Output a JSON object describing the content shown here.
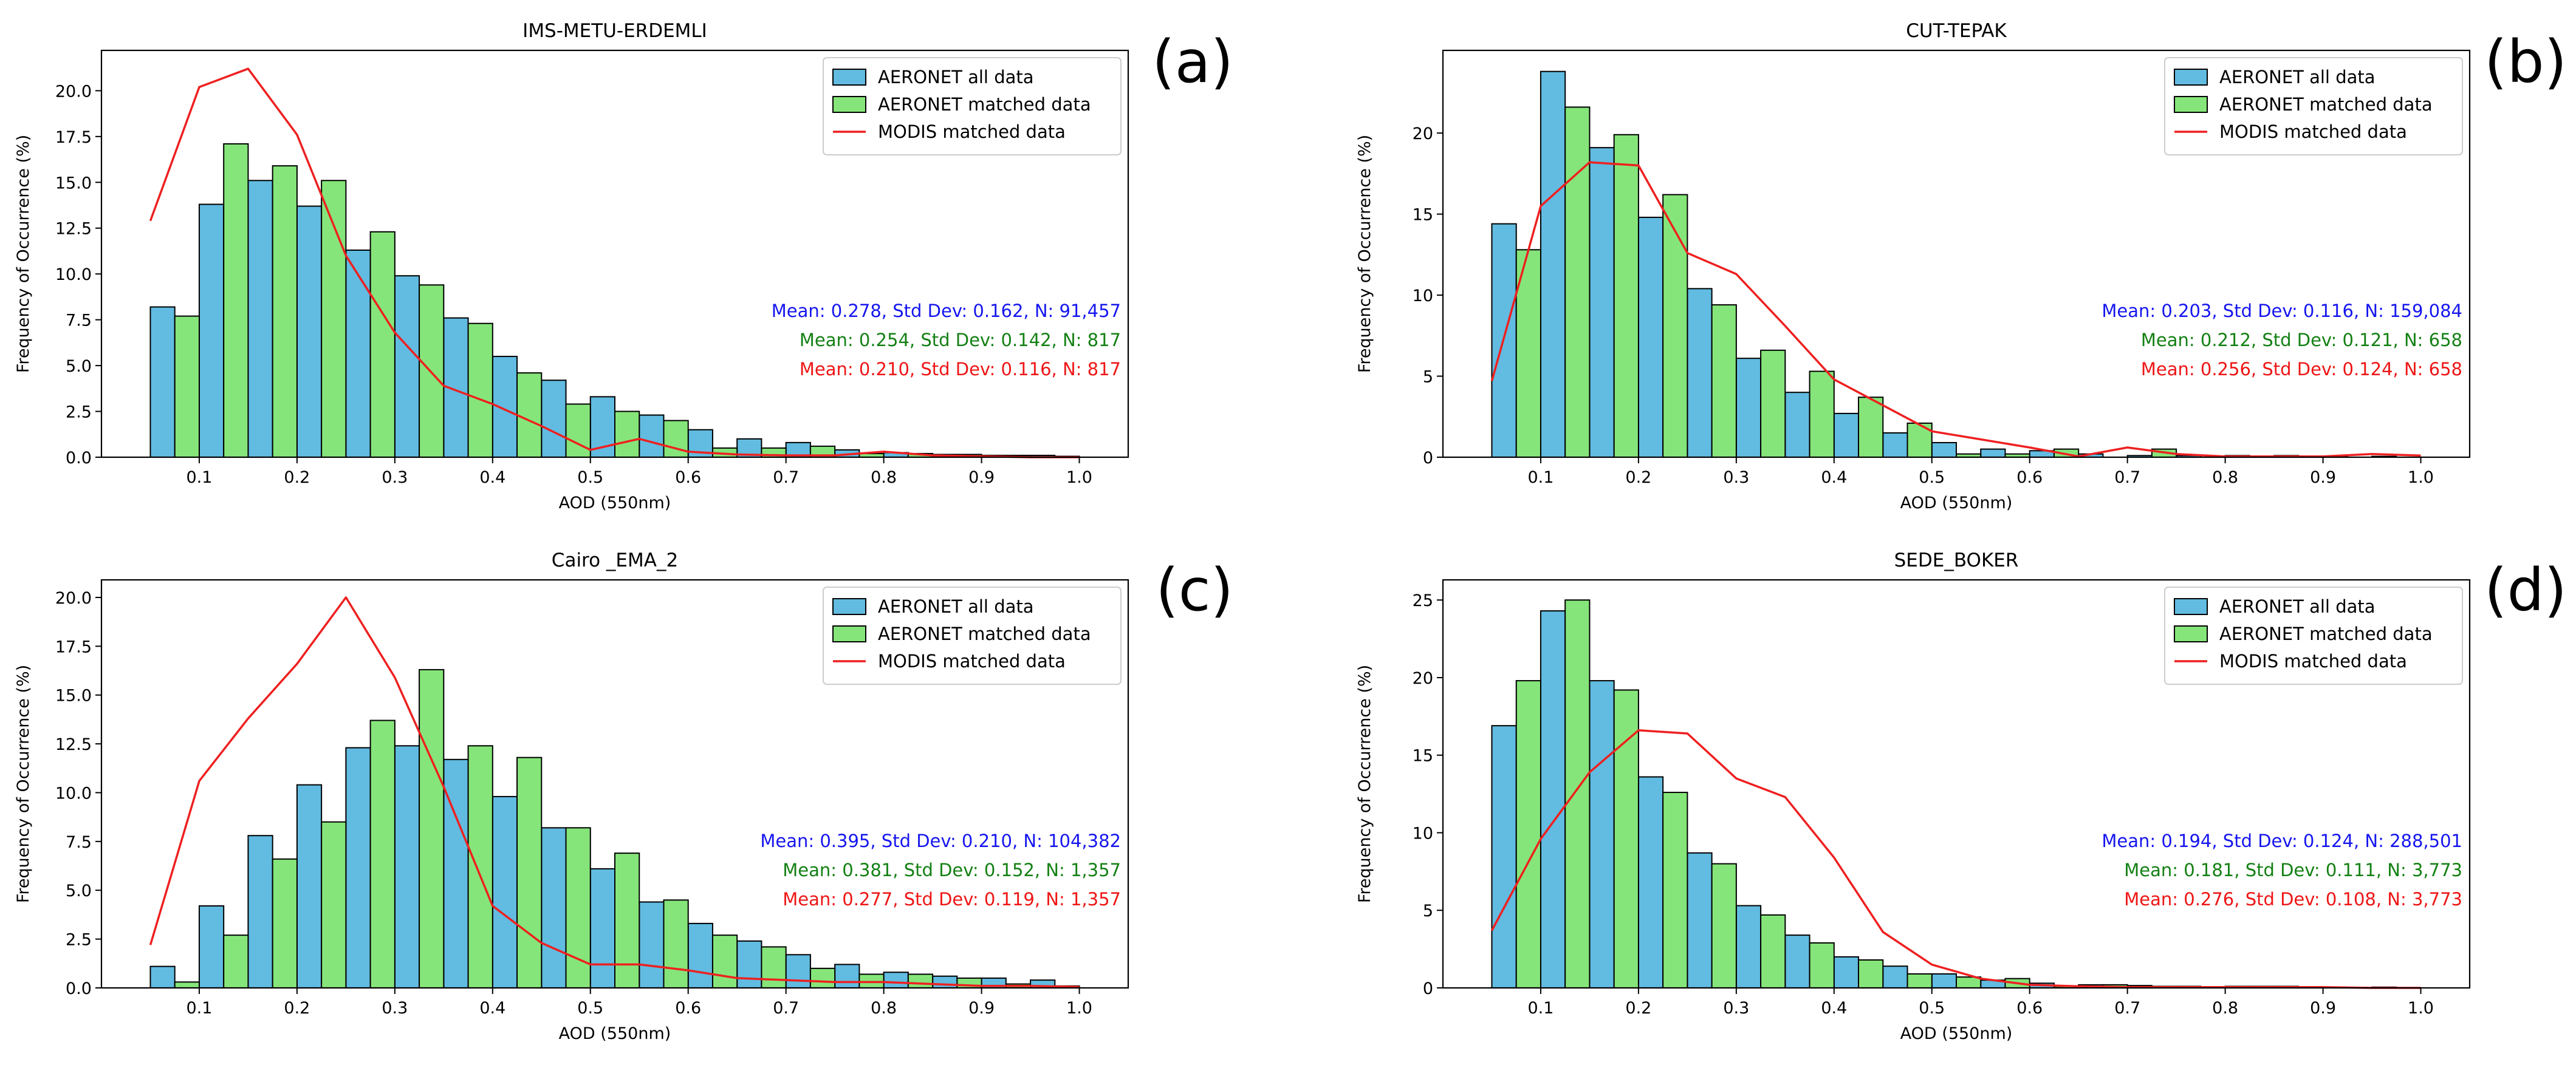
{
  "colors": {
    "all": "#62bbe0",
    "matched": "#86e57a",
    "modis": "#ee2020",
    "stat_all": "#1515f0",
    "stat_matched": "#138013",
    "stat_modis": "#ee1515"
  },
  "chart_data": [
    {
      "type": "bar",
      "panel_label": "(a)",
      "title": "IMS-METU-ERDEMLI",
      "xlabel": "AOD (550nm)",
      "ylabel": "Frequency of Occurrence (%)",
      "xlim": [
        0.0,
        1.05
      ],
      "ylim": [
        0,
        22.2
      ],
      "xticks": [
        0.1,
        0.2,
        0.3,
        0.4,
        0.5,
        0.6,
        0.7,
        0.8,
        0.9,
        1.0
      ],
      "yticks": [
        0.0,
        2.5,
        5.0,
        7.5,
        10.0,
        12.5,
        15.0,
        17.5,
        20.0
      ],
      "ytick_labels": [
        "0.0",
        "2.5",
        "5.0",
        "7.5",
        "10.0",
        "12.5",
        "15.0",
        "17.5",
        "20.0"
      ],
      "bin_centers": [
        0.075,
        0.125,
        0.175,
        0.225,
        0.275,
        0.325,
        0.375,
        0.425,
        0.475,
        0.525,
        0.575,
        0.625,
        0.675,
        0.725,
        0.775,
        0.825,
        0.875,
        0.925,
        0.975
      ],
      "series": [
        {
          "name": "AERONET all data",
          "values": [
            8.2,
            13.8,
            15.1,
            13.7,
            11.3,
            9.9,
            7.6,
            5.5,
            4.2,
            3.3,
            2.3,
            1.5,
            1.0,
            0.8,
            0.4,
            0.25,
            0.15,
            0.1,
            0.1
          ]
        },
        {
          "name": "AERONET matched data",
          "values": [
            7.7,
            17.1,
            15.9,
            15.1,
            12.3,
            9.4,
            7.3,
            4.6,
            2.9,
            2.5,
            2.0,
            0.5,
            0.5,
            0.6,
            0.2,
            0.2,
            0.15,
            0.1,
            0.05
          ]
        },
        {
          "name": "MODIS matched data",
          "x": [
            0.05,
            0.1,
            0.15,
            0.2,
            0.25,
            0.3,
            0.35,
            0.4,
            0.45,
            0.5,
            0.55,
            0.6,
            0.65,
            0.7,
            0.75,
            0.8,
            0.85,
            0.9,
            0.95,
            1.0
          ],
          "values": [
            12.9,
            20.2,
            21.2,
            17.6,
            11.0,
            6.8,
            3.9,
            2.9,
            1.7,
            0.4,
            1.0,
            0.3,
            0.15,
            0.1,
            0.1,
            0.3,
            0.1,
            0.05,
            0.0,
            0.0
          ]
        }
      ],
      "stats": [
        "Mean: 0.278, Std Dev: 0.162, N: 91,457",
        "Mean: 0.254, Std Dev: 0.142, N: 817",
        "Mean: 0.210, Std Dev: 0.116, N: 817"
      ],
      "legend": [
        "AERONET all data",
        "AERONET matched data",
        "MODIS matched data"
      ]
    },
    {
      "type": "bar",
      "panel_label": "(b)",
      "title": "CUT-TEPAK",
      "xlabel": "AOD (550nm)",
      "ylabel": "Frequency of Occurrence (%)",
      "xlim": [
        0.0,
        1.05
      ],
      "ylim": [
        0,
        25.1
      ],
      "xticks": [
        0.1,
        0.2,
        0.3,
        0.4,
        0.5,
        0.6,
        0.7,
        0.8,
        0.9,
        1.0
      ],
      "yticks": [
        0,
        5,
        10,
        15,
        20
      ],
      "ytick_labels": [
        "0",
        "5",
        "10",
        "15",
        "20"
      ],
      "bin_centers": [
        0.075,
        0.125,
        0.175,
        0.225,
        0.275,
        0.325,
        0.375,
        0.425,
        0.475,
        0.525,
        0.575,
        0.625,
        0.675,
        0.725,
        0.775,
        0.825,
        0.875,
        0.925,
        0.975
      ],
      "series": [
        {
          "name": "AERONET all data",
          "values": [
            14.4,
            23.8,
            19.1,
            14.8,
            10.4,
            6.1,
            4.0,
            2.7,
            1.5,
            0.9,
            0.5,
            0.4,
            0.2,
            0.1,
            0.1,
            0.1,
            0.1,
            0.05,
            0.05
          ]
        },
        {
          "name": "AERONET matched data",
          "values": [
            12.8,
            21.6,
            19.9,
            16.2,
            9.4,
            6.6,
            5.3,
            3.7,
            2.1,
            0.2,
            0.2,
            0.5,
            0.0,
            0.5,
            0.0,
            0.0,
            0.0,
            0.0,
            0.0
          ]
        },
        {
          "name": "MODIS matched data",
          "x": [
            0.05,
            0.1,
            0.15,
            0.2,
            0.25,
            0.3,
            0.35,
            0.4,
            0.45,
            0.5,
            0.55,
            0.6,
            0.65,
            0.7,
            0.75,
            0.8,
            0.85,
            0.9,
            0.95,
            1.0
          ],
          "values": [
            4.7,
            15.5,
            18.2,
            18.0,
            12.6,
            11.3,
            8.1,
            4.8,
            3.2,
            1.6,
            1.1,
            0.6,
            0.05,
            0.6,
            0.2,
            0.05,
            0.05,
            0.05,
            0.2,
            0.1
          ]
        }
      ],
      "stats": [
        "Mean: 0.203, Std Dev: 0.116, N: 159,084",
        "Mean: 0.212, Std Dev: 0.121, N: 658",
        "Mean: 0.256, Std Dev: 0.124, N: 658"
      ],
      "legend": [
        "AERONET all data",
        "AERONET matched data",
        "MODIS matched data"
      ]
    },
    {
      "type": "bar",
      "panel_label": "(c)",
      "title": "Cairo _EMA_2",
      "xlabel": "AOD (550nm)",
      "ylabel": "Frequency of Occurrence (%)",
      "xlim": [
        0.0,
        1.05
      ],
      "ylim": [
        0,
        20.9
      ],
      "xticks": [
        0.1,
        0.2,
        0.3,
        0.4,
        0.5,
        0.6,
        0.7,
        0.8,
        0.9,
        1.0
      ],
      "yticks": [
        0.0,
        2.5,
        5.0,
        7.5,
        10.0,
        12.5,
        15.0,
        17.5,
        20.0
      ],
      "ytick_labels": [
        "0.0",
        "2.5",
        "5.0",
        "7.5",
        "10.0",
        "12.5",
        "15.0",
        "17.5",
        "20.0"
      ],
      "bin_centers": [
        0.075,
        0.125,
        0.175,
        0.225,
        0.275,
        0.325,
        0.375,
        0.425,
        0.475,
        0.525,
        0.575,
        0.625,
        0.675,
        0.725,
        0.775,
        0.825,
        0.875,
        0.925,
        0.975
      ],
      "series": [
        {
          "name": "AERONET all data",
          "values": [
            1.1,
            4.2,
            7.8,
            10.4,
            12.3,
            12.4,
            11.7,
            9.8,
            8.2,
            6.1,
            4.4,
            3.3,
            2.4,
            1.7,
            1.2,
            0.8,
            0.6,
            0.5,
            0.4
          ]
        },
        {
          "name": "AERONET matched data",
          "values": [
            0.3,
            2.7,
            6.6,
            8.5,
            13.7,
            16.3,
            12.4,
            11.8,
            8.2,
            6.9,
            4.5,
            2.7,
            2.1,
            1.0,
            0.7,
            0.7,
            0.5,
            0.2,
            0.1
          ]
        },
        {
          "name": "MODIS matched data",
          "x": [
            0.05,
            0.1,
            0.15,
            0.2,
            0.25,
            0.3,
            0.35,
            0.4,
            0.45,
            0.5,
            0.55,
            0.6,
            0.65,
            0.7,
            0.75,
            0.8,
            0.85,
            0.9,
            0.95,
            1.0
          ],
          "values": [
            2.2,
            10.6,
            13.8,
            16.6,
            20.0,
            15.9,
            10.3,
            4.2,
            2.3,
            1.2,
            1.2,
            0.9,
            0.5,
            0.4,
            0.3,
            0.3,
            0.2,
            0.1,
            0.1,
            0.05
          ]
        }
      ],
      "stats": [
        "Mean: 0.395, Std Dev: 0.210, N: 104,382",
        "Mean: 0.381, Std Dev: 0.152, N: 1,357",
        "Mean: 0.277, Std Dev: 0.119, N: 1,357"
      ],
      "legend": [
        "AERONET all data",
        "AERONET matched data",
        "MODIS matched data"
      ]
    },
    {
      "type": "bar",
      "panel_label": "(d)",
      "title": "SEDE_BOKER",
      "xlabel": "AOD (550nm)",
      "ylabel": "Frequency of Occurrence (%)",
      "xlim": [
        0.0,
        1.05
      ],
      "ylim": [
        0,
        26.3
      ],
      "xticks": [
        0.1,
        0.2,
        0.3,
        0.4,
        0.5,
        0.6,
        0.7,
        0.8,
        0.9,
        1.0
      ],
      "yticks": [
        0,
        5,
        10,
        15,
        20,
        25
      ],
      "ytick_labels": [
        "0",
        "5",
        "10",
        "15",
        "20",
        "25"
      ],
      "bin_centers": [
        0.075,
        0.125,
        0.175,
        0.225,
        0.275,
        0.325,
        0.375,
        0.425,
        0.475,
        0.525,
        0.575,
        0.625,
        0.675,
        0.725,
        0.775,
        0.825,
        0.875,
        0.925,
        0.975
      ],
      "series": [
        {
          "name": "AERONET all data",
          "values": [
            16.9,
            24.3,
            19.8,
            13.6,
            8.7,
            5.3,
            3.4,
            2.0,
            1.4,
            0.9,
            0.5,
            0.3,
            0.2,
            0.15,
            0.1,
            0.1,
            0.1,
            0.05,
            0.05
          ]
        },
        {
          "name": "AERONET matched data",
          "values": [
            19.8,
            25.0,
            19.2,
            12.6,
            8.0,
            4.7,
            2.9,
            1.8,
            0.9,
            0.7,
            0.6,
            0.1,
            0.2,
            0.1,
            0.0,
            0.1,
            0.0,
            0.0,
            0.0
          ]
        },
        {
          "name": "MODIS matched data",
          "x": [
            0.05,
            0.1,
            0.15,
            0.2,
            0.25,
            0.3,
            0.35,
            0.4,
            0.45,
            0.5,
            0.55,
            0.6,
            0.65,
            0.7,
            0.75,
            0.8,
            0.85,
            0.9,
            0.95,
            1.0
          ],
          "values": [
            3.7,
            9.6,
            13.9,
            16.6,
            16.4,
            13.5,
            12.3,
            8.4,
            3.6,
            1.5,
            0.6,
            0.2,
            0.1,
            0.05,
            0.05,
            0.05,
            0.05,
            0.05,
            0.0,
            0.0
          ]
        }
      ],
      "stats": [
        "Mean: 0.194, Std Dev: 0.124, N: 288,501",
        "Mean: 0.181, Std Dev: 0.111, N: 3,773",
        "Mean: 0.276, Std Dev: 0.108, N: 3,773"
      ],
      "legend": [
        "AERONET all data",
        "AERONET matched data",
        "MODIS matched data"
      ]
    }
  ]
}
